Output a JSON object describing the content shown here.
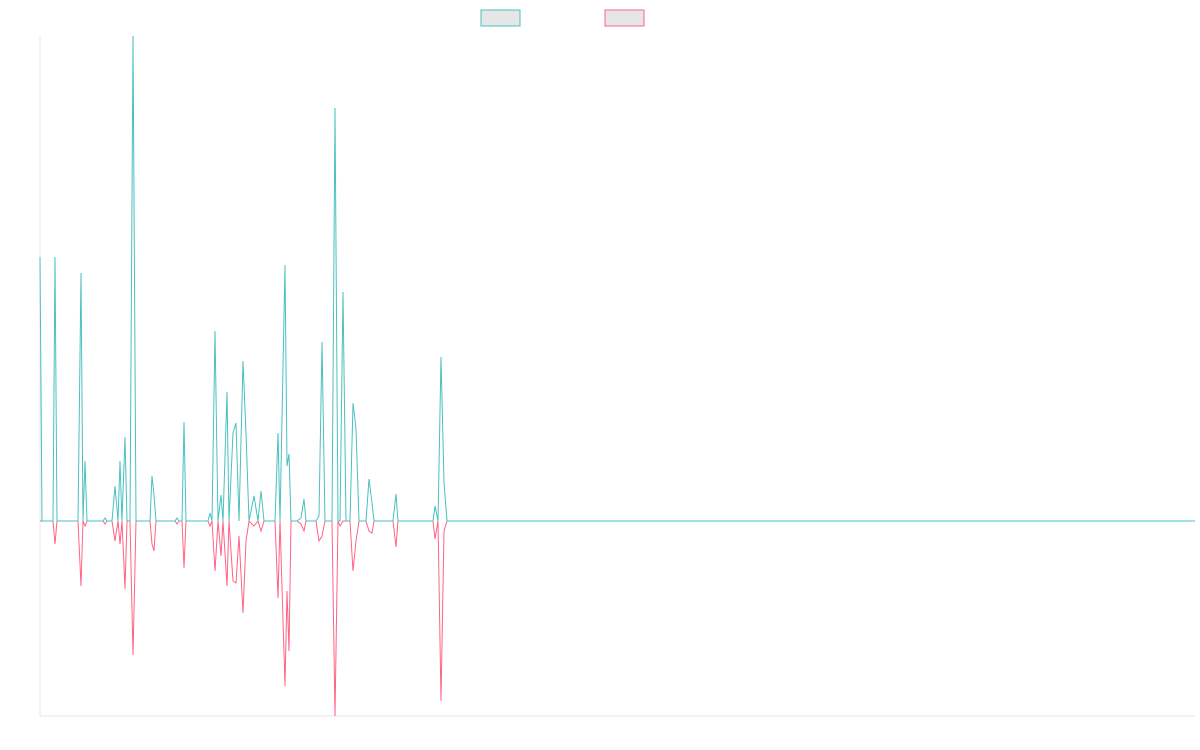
{
  "chart_data": {
    "type": "line",
    "x": [
      0,
      2,
      13,
      15,
      17,
      38,
      41,
      43,
      45,
      47,
      63,
      65,
      67,
      72,
      75,
      78,
      80,
      82,
      85,
      87,
      90,
      93,
      96,
      110,
      112,
      114,
      116,
      135,
      137,
      139,
      142,
      144,
      146,
      168,
      170,
      172,
      175,
      178,
      181,
      183,
      187,
      189,
      193,
      196,
      199,
      203,
      206,
      209,
      214,
      218,
      221,
      224,
      235,
      238,
      240,
      245,
      247,
      249,
      251,
      257,
      261,
      264,
      266,
      276,
      279,
      282,
      285,
      292,
      295,
      298,
      300,
      303,
      306,
      310,
      313,
      316,
      319,
      326,
      329,
      332,
      334,
      353,
      356,
      358,
      393,
      395,
      398,
      401,
      404,
      407,
      1155
    ],
    "series": [
      {
        "color": "#4bc0c0",
        "values": [
          264,
          0,
          0,
          264,
          0,
          0,
          248,
          0,
          60,
          0,
          0,
          3,
          0,
          0,
          35,
          0,
          60,
          0,
          84,
          0,
          0,
          485,
          0,
          0,
          45,
          26,
          0,
          0,
          3,
          0,
          0,
          99,
          0,
          0,
          8,
          0,
          190,
          0,
          26,
          0,
          129,
          0,
          88,
          98,
          0,
          160,
          88,
          0,
          25,
          0,
          30,
          0,
          0,
          88,
          0,
          256,
          55,
          67,
          0,
          0,
          3,
          22,
          0,
          0,
          5,
          179,
          0,
          0,
          413,
          0,
          0,
          229,
          0,
          0,
          118,
          92,
          0,
          0,
          42,
          18,
          0,
          0,
          27,
          0,
          0,
          15,
          0,
          164,
          38,
          0,
          0
        ]
      },
      {
        "color": "#ff6384",
        "values": [
          0,
          0,
          0,
          -23,
          0,
          0,
          -65,
          0,
          -5,
          0,
          0,
          -3,
          0,
          0,
          -20,
          0,
          -23,
          0,
          -68,
          0,
          0,
          -134,
          0,
          0,
          -23,
          -30,
          0,
          0,
          -3,
          0,
          0,
          -47,
          0,
          0,
          -5,
          0,
          -50,
          0,
          -35,
          0,
          -65,
          0,
          -60,
          -62,
          -15,
          -92,
          -20,
          0,
          -5,
          0,
          -10,
          0,
          0,
          -77,
          0,
          -165,
          -70,
          -130,
          0,
          0,
          -3,
          -10,
          0,
          0,
          -20,
          -15,
          0,
          0,
          -195,
          0,
          -5,
          0,
          0,
          0,
          -50,
          -20,
          0,
          0,
          -10,
          -12,
          0,
          0,
          -26,
          0,
          0,
          -18,
          0,
          -180,
          -10,
          0,
          0
        ]
      }
    ],
    "xlim": [
      0,
      1155
    ],
    "ylim": [
      -195,
      485
    ]
  }
}
